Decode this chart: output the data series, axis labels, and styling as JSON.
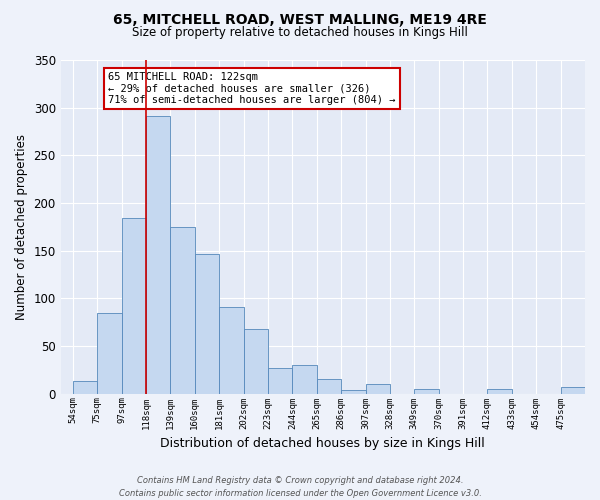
{
  "title": "65, MITCHELL ROAD, WEST MALLING, ME19 4RE",
  "subtitle": "Size of property relative to detached houses in Kings Hill",
  "xlabel": "Distribution of detached houses by size in Kings Hill",
  "ylabel": "Number of detached properties",
  "bin_labels": [
    "54sqm",
    "75sqm",
    "97sqm",
    "118sqm",
    "139sqm",
    "160sqm",
    "181sqm",
    "202sqm",
    "223sqm",
    "244sqm",
    "265sqm",
    "286sqm",
    "307sqm",
    "328sqm",
    "349sqm",
    "370sqm",
    "391sqm",
    "412sqm",
    "433sqm",
    "454sqm",
    "475sqm"
  ],
  "bar_heights": [
    13,
    85,
    184,
    291,
    175,
    147,
    91,
    68,
    27,
    30,
    15,
    4,
    10,
    0,
    5,
    0,
    0,
    5,
    0,
    0,
    7
  ],
  "bar_color": "#c5d8f0",
  "bar_edge_color": "#5588bb",
  "vline_x_index": 3,
  "property_label": "65 MITCHELL ROAD: 122sqm",
  "annotation_line1": "← 29% of detached houses are smaller (326)",
  "annotation_line2": "71% of semi-detached houses are larger (804) →",
  "vline_color": "#cc0000",
  "box_edge_color": "#cc0000",
  "ylim": [
    0,
    350
  ],
  "yticks": [
    0,
    50,
    100,
    150,
    200,
    250,
    300,
    350
  ],
  "footer_line1": "Contains HM Land Registry data © Crown copyright and database right 2024.",
  "footer_line2": "Contains public sector information licensed under the Open Government Licence v3.0.",
  "bg_color": "#eef2fa",
  "plot_bg_color": "#e4eaf6"
}
